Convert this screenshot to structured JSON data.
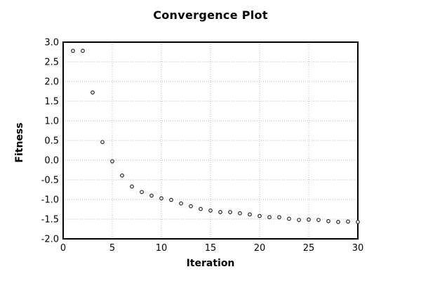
{
  "page": {
    "background": "#ffffff"
  },
  "chart_data": {
    "type": "scatter",
    "title": "Convergence Plot",
    "xlabel": "Iteration",
    "ylabel": "Fitness",
    "xlim": [
      0,
      30
    ],
    "ylim": [
      -2.0,
      3.0
    ],
    "xticks": [
      0,
      5,
      10,
      15,
      20,
      25,
      30
    ],
    "yticks": [
      -2.0,
      -1.5,
      -1.0,
      -0.5,
      0.0,
      0.5,
      1.0,
      1.5,
      2.0,
      2.5,
      3.0
    ],
    "grid": "dotted",
    "legend_position": "none",
    "marker": "open-circle",
    "colors": {
      "marker_stroke": "#2a2a2a",
      "marker_fill": "#ffffff",
      "grid": "#b8b8b8",
      "border": "#000000",
      "text": "#000000"
    },
    "x": [
      1,
      2,
      3,
      4,
      5,
      6,
      7,
      8,
      9,
      10,
      11,
      12,
      13,
      14,
      15,
      16,
      17,
      18,
      19,
      20,
      21,
      22,
      23,
      24,
      25,
      26,
      27,
      28,
      29,
      30
    ],
    "y": [
      2.78,
      2.78,
      1.72,
      0.46,
      -0.03,
      -0.39,
      -0.67,
      -0.81,
      -0.9,
      -0.97,
      -1.01,
      -1.1,
      -1.17,
      -1.24,
      -1.28,
      -1.32,
      -1.32,
      -1.35,
      -1.38,
      -1.42,
      -1.45,
      -1.45,
      -1.49,
      -1.52,
      -1.51,
      -1.52,
      -1.55,
      -1.57,
      -1.56,
      -1.57
    ]
  }
}
